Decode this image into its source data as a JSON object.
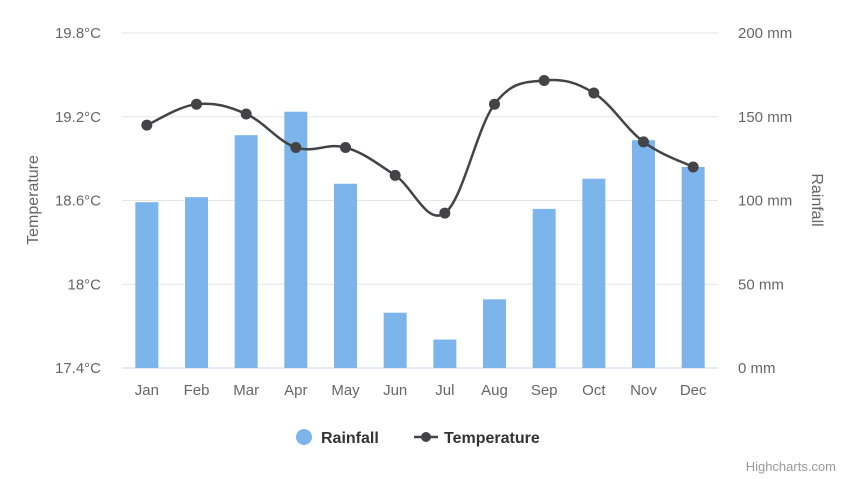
{
  "chart_data": {
    "type": "bar",
    "categories": [
      "Jan",
      "Feb",
      "Mar",
      "Apr",
      "May",
      "Jun",
      "Jul",
      "Aug",
      "Sep",
      "Oct",
      "Nov",
      "Dec"
    ],
    "series": [
      {
        "name": "Rainfall",
        "type": "bar",
        "axis": "right",
        "color": "#7cb5ec",
        "values": [
          99,
          102,
          139,
          153,
          110,
          33,
          17,
          41,
          95,
          113,
          136,
          120
        ]
      },
      {
        "name": "Temperature",
        "type": "line",
        "axis": "left",
        "color": "#434348",
        "values": [
          19.14,
          19.29,
          19.22,
          18.98,
          18.98,
          18.78,
          18.51,
          19.29,
          19.46,
          19.37,
          19.02,
          18.84
        ]
      }
    ],
    "y_left": {
      "label": "Temperature",
      "range": [
        17.4,
        19.8
      ],
      "ticks": [
        "17.4°C",
        "18°C",
        "18.6°C",
        "19.2°C",
        "19.8°C"
      ]
    },
    "y_right": {
      "label": "Rainfall",
      "range": [
        0,
        200
      ],
      "ticks": [
        "0 mm",
        "50 mm",
        "100 mm",
        "150 mm",
        "200 mm"
      ]
    },
    "grid": true,
    "legend": "bottom-center"
  },
  "credits": "Highcharts.com"
}
